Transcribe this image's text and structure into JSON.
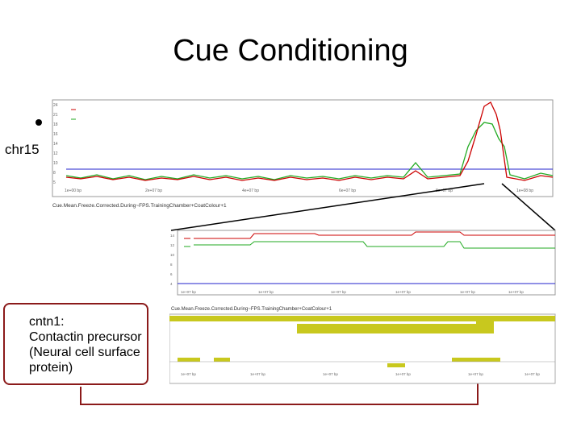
{
  "slide": {
    "title": "Cue Conditioning",
    "side_label": "chr15",
    "bullet_symbol": "•",
    "gene_box": {
      "line1": "cntn1:",
      "line2": "Contactin precursor",
      "line3": "(Neural cell surface",
      "line4": "protein)"
    }
  },
  "top_panel": {
    "caption": "Cue.Mean.Freeze.Corrected.During~FPS.TrainingChamber+CoatColour+1",
    "colors": {
      "red": "#cc0000",
      "green": "#22aa22",
      "blue": "#2222cc"
    }
  },
  "zoom_panel": {
    "caption": "Cue.Mean.Freeze.Corrected.During~FPS.TrainingChamber+CoatColour+1"
  },
  "colors": {
    "arrow": "#8b1a1a",
    "gene_track": "#c8c81e",
    "red_series": "#cc0000",
    "green_series": "#22aa22",
    "blue_line": "#2222cc"
  }
}
